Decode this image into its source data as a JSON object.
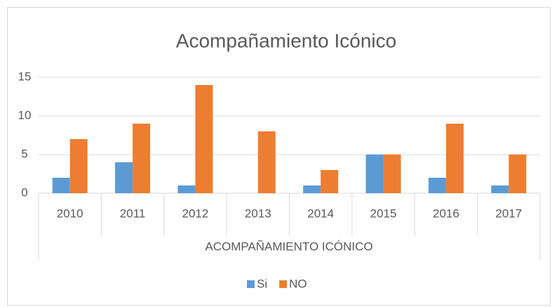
{
  "chart_data": {
    "type": "bar",
    "title": "Acompañamiento Icónico",
    "x_label": "ACOMPAÑAMIENTO ICÓNICO",
    "categories": [
      "2010",
      "2011",
      "2012",
      "2013",
      "2014",
      "2015",
      "2016",
      "2017"
    ],
    "series": [
      {
        "name": "Si",
        "color": "#5b9bd5",
        "values": [
          2,
          4,
          1,
          0,
          1,
          5,
          2,
          1
        ]
      },
      {
        "name": "NO",
        "color": "#ed7d31",
        "values": [
          7,
          9,
          14,
          8,
          3,
          5,
          9,
          5
        ]
      }
    ],
    "ylim": [
      0,
      15
    ],
    "yticks": [
      0,
      5,
      10,
      15
    ],
    "grid": true,
    "legend": "bottom"
  }
}
